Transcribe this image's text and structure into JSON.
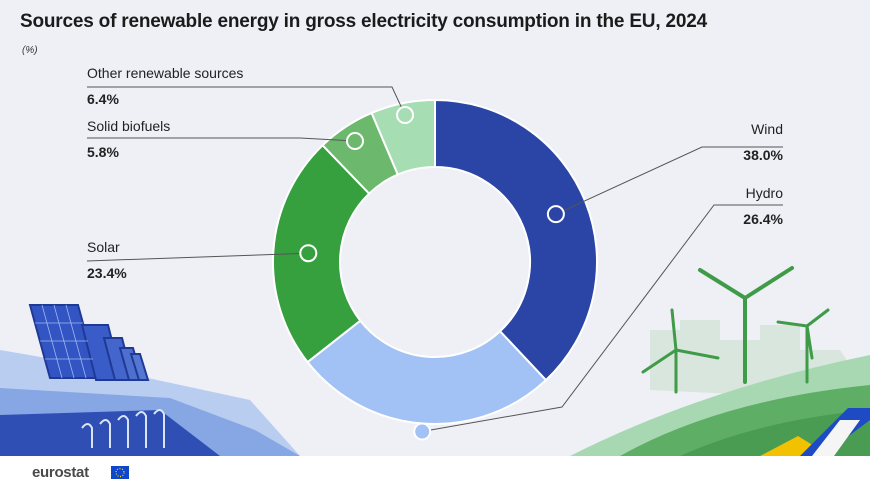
{
  "title": "Sources of renewable energy in gross electricity consumption in the EU, 2024",
  "unit": "(%)",
  "brand": "eurostat",
  "chart_data": {
    "type": "pie",
    "donut": true,
    "slices": [
      {
        "name": "Wind",
        "value": 38.0,
        "label": "38.0%",
        "color": "#2a45a6"
      },
      {
        "name": "Hydro",
        "value": 26.4,
        "label": "26.4%",
        "color": "#a2c2f5"
      },
      {
        "name": "Solar",
        "value": 23.4,
        "label": "23.4%",
        "color": "#36a03e"
      },
      {
        "name": "Solid biofuels",
        "value": 5.8,
        "label": "5.8%",
        "color": "#6cb86d"
      },
      {
        "name": "Other renewable sources",
        "value": 6.4,
        "label": "6.4%",
        "color": "#a6ddb2"
      }
    ]
  }
}
